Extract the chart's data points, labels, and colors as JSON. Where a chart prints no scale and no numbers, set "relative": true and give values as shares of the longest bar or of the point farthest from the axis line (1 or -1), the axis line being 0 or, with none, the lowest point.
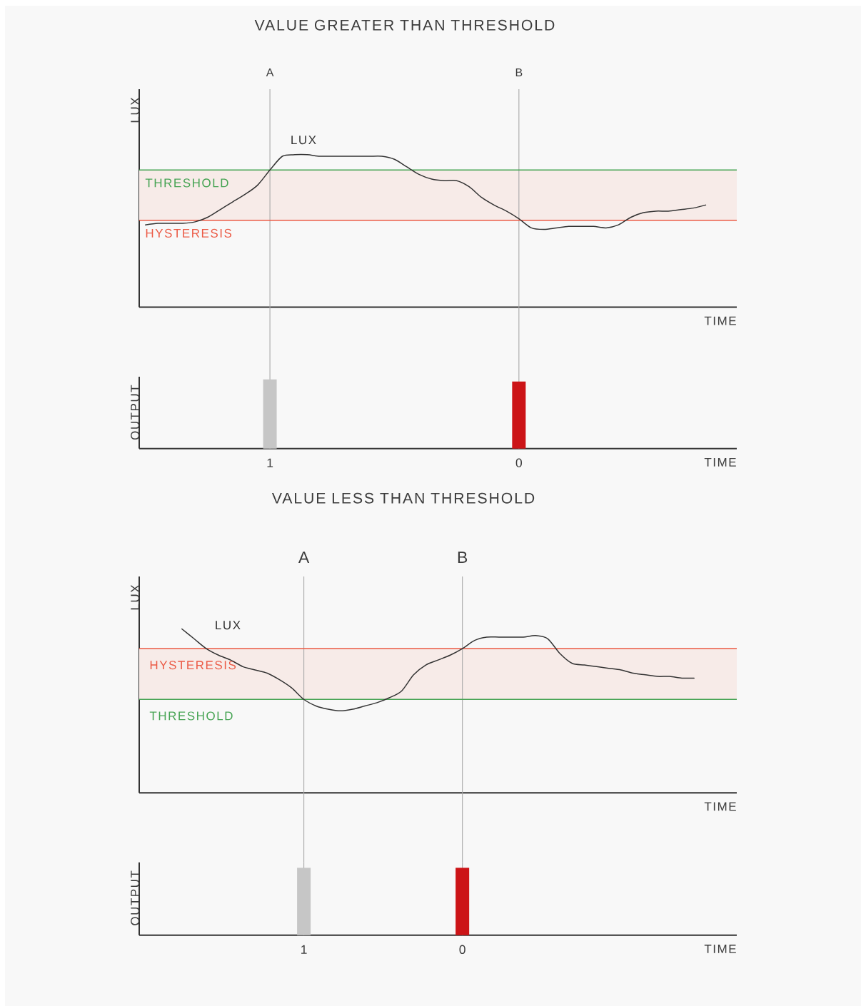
{
  "chart_data": [
    {
      "type": "line",
      "title": "VALUE GREATER THAN THRESHOLD",
      "xlabel": "TIME",
      "ylabel": "LUX",
      "relative": true,
      "grid": "x",
      "categories": [
        null,
        null,
        null,
        null,
        null,
        null,
        null,
        null,
        null,
        null,
        "A",
        null,
        null,
        null,
        null,
        null,
        null,
        null,
        null,
        null,
        null,
        null,
        null,
        null,
        null,
        null,
        null,
        null,
        null,
        null,
        "B",
        null,
        null,
        null,
        null,
        null,
        null,
        null,
        null,
        null,
        null,
        null,
        null,
        null,
        null,
        null,
        null,
        null
      ],
      "series": [
        {
          "name": "LUX",
          "color": "#333333",
          "values": [
            0.54,
            0.55,
            0.55,
            0.55,
            0.56,
            0.59,
            0.64,
            0.69,
            0.74,
            0.8,
            0.9,
            0.99,
            1,
            1,
            0.99,
            0.99,
            0.99,
            0.99,
            0.99,
            0.99,
            0.97,
            0.92,
            0.87,
            0.84,
            0.83,
            0.83,
            0.79,
            0.72,
            0.67,
            0.63,
            0.58,
            0.52,
            0.51,
            0.52,
            0.53,
            0.53,
            0.53,
            0.52,
            0.54,
            0.59,
            0.62,
            0.63,
            0.63,
            0.64,
            0.65,
            0.67,
            null,
            null
          ]
        }
      ],
      "bands": [
        {
          "axis": "y",
          "from": 0.57,
          "to": 0.9,
          "color": "#f7ebe8"
        }
      ],
      "ref_lines": [
        {
          "axis": "y",
          "value": 0.9,
          "label": "THRESHOLD",
          "color": "#45a352"
        },
        {
          "axis": "y",
          "value": 0.57,
          "label": "HYSTERESIS",
          "color": "#eb5a45"
        }
      ]
    },
    {
      "type": "bar",
      "xlabel": "TIME",
      "ylabel": "OUTPUT",
      "relative": true,
      "grid": "x",
      "categories": [
        null,
        null,
        null,
        null,
        null,
        null,
        null,
        null,
        null,
        null,
        "1",
        null,
        null,
        null,
        null,
        null,
        null,
        null,
        null,
        null,
        null,
        null,
        null,
        null,
        null,
        null,
        null,
        null,
        null,
        null,
        "0",
        null,
        null,
        null,
        null,
        null,
        null,
        null,
        null,
        null,
        null,
        null,
        null,
        null,
        null,
        null,
        null,
        null
      ],
      "values": [
        null,
        null,
        null,
        null,
        null,
        null,
        null,
        null,
        null,
        null,
        1,
        null,
        null,
        null,
        null,
        null,
        null,
        null,
        null,
        null,
        null,
        null,
        null,
        null,
        null,
        null,
        null,
        null,
        null,
        null,
        0.97,
        null,
        null,
        null,
        null,
        null,
        null,
        null,
        null,
        null,
        null,
        null,
        null,
        null,
        null,
        null,
        null,
        null
      ],
      "colors": [
        null,
        null,
        null,
        null,
        null,
        null,
        null,
        null,
        null,
        null,
        "#c6c6c6",
        null,
        null,
        null,
        null,
        null,
        null,
        null,
        null,
        null,
        null,
        null,
        null,
        null,
        null,
        null,
        null,
        null,
        null,
        null,
        "#cc1417",
        null,
        null,
        null,
        null,
        null,
        null,
        null,
        null,
        null,
        null,
        null,
        null,
        null,
        null,
        null,
        null,
        null
      ]
    },
    {
      "type": "line",
      "title": "VALUE LESS THAN THRESHOLD",
      "xlabel": "TIME",
      "ylabel": "LUX",
      "relative": true,
      "grid": "x",
      "categories": [
        null,
        null,
        null,
        null,
        null,
        null,
        null,
        null,
        null,
        null,
        null,
        null,
        null,
        "A",
        null,
        null,
        null,
        null,
        null,
        null,
        null,
        null,
        null,
        null,
        null,
        null,
        "B",
        null,
        null,
        null,
        null,
        null,
        null,
        null,
        null,
        null,
        null,
        null,
        null,
        null,
        null,
        null,
        null,
        null,
        null,
        null,
        null,
        null,
        null
      ],
      "series": [
        {
          "name": "LUX",
          "color": "#333333",
          "values": [
            null,
            null,
            null,
            1,
            0.94,
            0.88,
            0.84,
            0.81,
            0.77,
            0.75,
            0.73,
            0.69,
            0.64,
            0.57,
            0.53,
            0.51,
            0.5,
            0.51,
            0.53,
            0.55,
            0.58,
            0.62,
            0.72,
            0.78,
            0.81,
            0.84,
            0.88,
            0.93,
            0.95,
            0.95,
            0.95,
            0.95,
            0.96,
            0.94,
            0.85,
            0.79,
            0.78,
            0.77,
            0.76,
            0.75,
            0.73,
            0.72,
            0.71,
            0.71,
            0.7,
            0.7,
            null,
            null,
            null
          ]
        }
      ],
      "bands": [
        {
          "axis": "y",
          "from": 0.57,
          "to": 0.88,
          "color": "#f7ebe8"
        }
      ],
      "ref_lines": [
        {
          "axis": "y",
          "value": 0.88,
          "label": "HYSTERESIS",
          "color": "#eb5a45"
        },
        {
          "axis": "y",
          "value": 0.57,
          "label": "THRESHOLD",
          "color": "#45a352"
        }
      ]
    },
    {
      "type": "bar",
      "xlabel": "TIME",
      "ylabel": "OUTPUT",
      "relative": true,
      "grid": "x",
      "categories": [
        null,
        null,
        null,
        null,
        null,
        null,
        null,
        null,
        null,
        null,
        null,
        null,
        null,
        "1",
        null,
        null,
        null,
        null,
        null,
        null,
        null,
        null,
        null,
        null,
        null,
        null,
        "0",
        null,
        null,
        null,
        null,
        null,
        null,
        null,
        null,
        null,
        null,
        null,
        null,
        null,
        null,
        null,
        null,
        null,
        null,
        null,
        null,
        null,
        null
      ],
      "values": [
        null,
        null,
        null,
        null,
        null,
        null,
        null,
        null,
        null,
        null,
        null,
        null,
        null,
        1,
        null,
        null,
        null,
        null,
        null,
        null,
        null,
        null,
        null,
        null,
        null,
        null,
        1,
        null,
        null,
        null,
        null,
        null,
        null,
        null,
        null,
        null,
        null,
        null,
        null,
        null,
        null,
        null,
        null,
        null,
        null,
        null,
        null,
        null,
        null
      ],
      "colors": [
        null,
        null,
        null,
        null,
        null,
        null,
        null,
        null,
        null,
        null,
        null,
        null,
        null,
        "#c6c6c6",
        null,
        null,
        null,
        null,
        null,
        null,
        null,
        null,
        null,
        null,
        null,
        null,
        "#cc1417",
        null,
        null,
        null,
        null,
        null,
        null,
        null,
        null,
        null,
        null,
        null,
        null,
        null,
        null,
        null,
        null,
        null,
        null,
        null,
        null,
        null,
        null
      ]
    }
  ]
}
